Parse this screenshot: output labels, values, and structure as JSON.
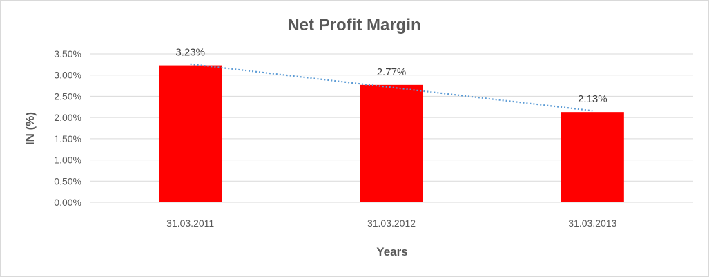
{
  "chart_data": {
    "type": "bar",
    "title": "Net Profit Margin",
    "xlabel": "Years",
    "ylabel": "IN (%)",
    "categories": [
      "31.03.2011",
      "31.03.2012",
      "31.03.2013"
    ],
    "values": [
      3.23,
      2.77,
      2.13
    ],
    "data_labels": [
      "3.23%",
      "2.77%",
      "2.13%"
    ],
    "y_ticks": [
      "0.00%",
      "0.50%",
      "1.00%",
      "1.50%",
      "2.00%",
      "2.50%",
      "3.00%",
      "3.50%"
    ],
    "ylim": [
      0,
      3.5
    ],
    "grid": true,
    "legend": "none",
    "trendline": {
      "type": "linear",
      "style": "dotted",
      "color": "#5b9bd5"
    },
    "colors": {
      "bar": "#ff0000",
      "grid": "#d9d9d9",
      "text": "#595959"
    }
  }
}
